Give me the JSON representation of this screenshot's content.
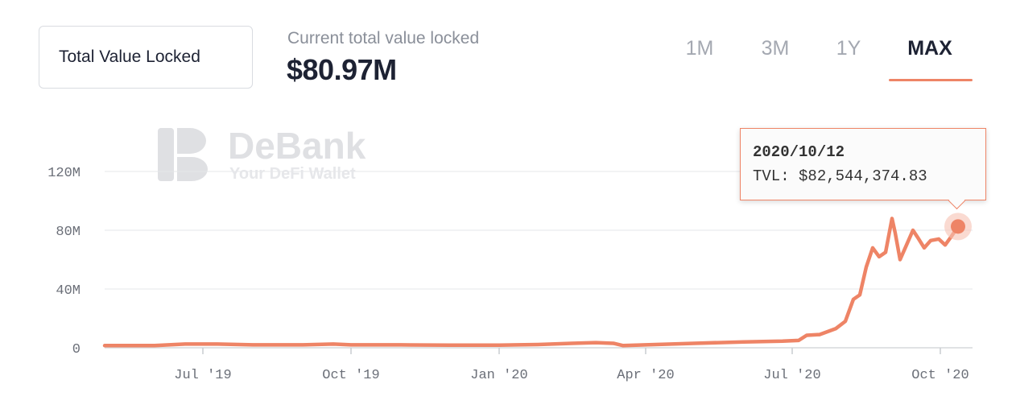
{
  "metric_select": {
    "label": "Total Value Locked"
  },
  "summary": {
    "caption": "Current total value locked",
    "value": "$80.97M"
  },
  "range_tabs": [
    {
      "label": "1M",
      "active": false
    },
    {
      "label": "3M",
      "active": false
    },
    {
      "label": "1Y",
      "active": false
    },
    {
      "label": "MAX",
      "active": true
    }
  ],
  "watermark": {
    "brand": "DeBank",
    "tagline": "Your DeFi Wallet"
  },
  "tooltip": {
    "date": "2020/10/12",
    "value_text": "TVL: $82,544,374.83"
  },
  "colors": {
    "line": "#ee8466",
    "grid": "#e6e7ea",
    "active_tab": "#1d2233",
    "inactive_tab": "#a4a8b1"
  },
  "chart_data": {
    "type": "line",
    "ylim": [
      0,
      160
    ],
    "y_unit": "M",
    "y_ticks": [
      {
        "value": 0,
        "label": "0"
      },
      {
        "value": 40,
        "label": "40M"
      },
      {
        "value": 80,
        "label": "80M"
      },
      {
        "value": 120,
        "label": "120M"
      }
    ],
    "x_range": [
      "2019-05-01",
      "2020-10-21"
    ],
    "x_ticks": [
      {
        "date": "2019-07-01",
        "label": "Jul '19"
      },
      {
        "date": "2019-10-01",
        "label": "Oct '19"
      },
      {
        "date": "2020-01-01",
        "label": "Jan '20"
      },
      {
        "date": "2020-04-01",
        "label": "Apr '20"
      },
      {
        "date": "2020-07-01",
        "label": "Jul '20"
      },
      {
        "date": "2020-10-01",
        "label": "Oct '20"
      }
    ],
    "highlight": {
      "date": "2020-10-12",
      "value": 82.54
    },
    "points": [
      [
        "2019-05-01",
        1.5
      ],
      [
        "2019-06-01",
        1.5
      ],
      [
        "2019-06-20",
        2.5
      ],
      [
        "2019-07-10",
        2.5
      ],
      [
        "2019-08-01",
        2.0
      ],
      [
        "2019-09-01",
        2.0
      ],
      [
        "2019-09-20",
        2.5
      ],
      [
        "2019-10-01",
        2.0
      ],
      [
        "2019-11-01",
        2.0
      ],
      [
        "2019-12-01",
        1.8
      ],
      [
        "2020-01-01",
        1.8
      ],
      [
        "2020-01-25",
        2.2
      ],
      [
        "2020-02-15",
        3.0
      ],
      [
        "2020-03-01",
        3.5
      ],
      [
        "2020-03-12",
        3.0
      ],
      [
        "2020-03-18",
        1.5
      ],
      [
        "2020-04-01",
        2.0
      ],
      [
        "2020-05-01",
        3.0
      ],
      [
        "2020-06-01",
        4.0
      ],
      [
        "2020-06-25",
        4.5
      ],
      [
        "2020-07-05",
        5.0
      ],
      [
        "2020-07-10",
        8.5
      ],
      [
        "2020-07-18",
        9.0
      ],
      [
        "2020-07-28",
        13.0
      ],
      [
        "2020-08-03",
        18.0
      ],
      [
        "2020-08-08",
        33.0
      ],
      [
        "2020-08-12",
        36.0
      ],
      [
        "2020-08-16",
        55.0
      ],
      [
        "2020-08-20",
        68.0
      ],
      [
        "2020-08-24",
        62.0
      ],
      [
        "2020-08-28",
        65.0
      ],
      [
        "2020-09-01",
        88.0
      ],
      [
        "2020-09-03",
        78.0
      ],
      [
        "2020-09-06",
        60.0
      ],
      [
        "2020-09-10",
        70.0
      ],
      [
        "2020-09-14",
        80.0
      ],
      [
        "2020-09-17",
        75.0
      ],
      [
        "2020-09-21",
        68.0
      ],
      [
        "2020-09-25",
        73.0
      ],
      [
        "2020-09-30",
        74.0
      ],
      [
        "2020-10-04",
        70.0
      ],
      [
        "2020-10-08",
        76.0
      ],
      [
        "2020-10-12",
        82.54
      ]
    ]
  }
}
